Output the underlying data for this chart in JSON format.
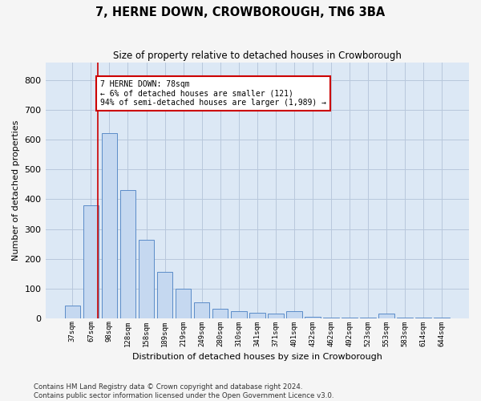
{
  "title": "7, HERNE DOWN, CROWBOROUGH, TN6 3BA",
  "subtitle": "Size of property relative to detached houses in Crowborough",
  "xlabel": "Distribution of detached houses by size in Crowborough",
  "ylabel": "Number of detached properties",
  "footnote1": "Contains HM Land Registry data © Crown copyright and database right 2024.",
  "footnote2": "Contains public sector information licensed under the Open Government Licence v3.0.",
  "bar_labels": [
    "37sqm",
    "67sqm",
    "98sqm",
    "128sqm",
    "158sqm",
    "189sqm",
    "219sqm",
    "249sqm",
    "280sqm",
    "310sqm",
    "341sqm",
    "371sqm",
    "401sqm",
    "432sqm",
    "462sqm",
    "492sqm",
    "523sqm",
    "553sqm",
    "583sqm",
    "614sqm",
    "644sqm"
  ],
  "bar_values": [
    42,
    380,
    622,
    430,
    263,
    155,
    100,
    52,
    32,
    22,
    18,
    15,
    22,
    5,
    2,
    2,
    2,
    15,
    2,
    2,
    2
  ],
  "bar_color": "#c5d8f0",
  "bar_edge_color": "#5b8cc8",
  "property_line_label": "7 HERNE DOWN: 78sqm",
  "annotation_line1": "← 6% of detached houses are smaller (121)",
  "annotation_line2": "94% of semi-detached houses are larger (1,989) →",
  "annotation_box_facecolor": "#ffffff",
  "annotation_box_edgecolor": "#cc0000",
  "vline_color": "#cc0000",
  "ylim": [
    0,
    860
  ],
  "yticks": [
    0,
    100,
    200,
    300,
    400,
    500,
    600,
    700,
    800
  ],
  "grid_color": "#b8c8dc",
  "fig_facecolor": "#f5f5f5",
  "plot_bg_color": "#dce8f5"
}
